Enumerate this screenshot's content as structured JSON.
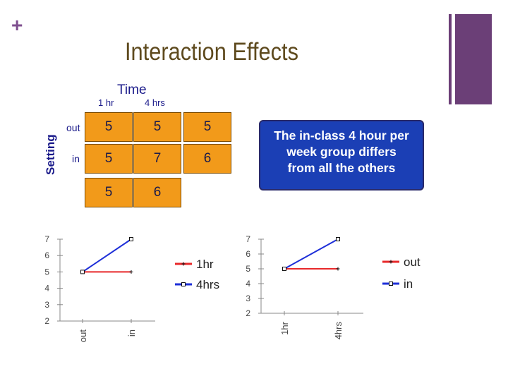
{
  "slide": {
    "marker": "+",
    "title": "Interaction Effects"
  },
  "table": {
    "column_title": "Time",
    "row_title": "Setting",
    "columns": [
      "1 hr",
      "4 hrs"
    ],
    "rows": [
      "out",
      "in"
    ],
    "cells": [
      [
        "5",
        "5"
      ],
      [
        "5",
        "7"
      ]
    ],
    "row_means": [
      "5",
      "6"
    ],
    "column_means": [
      "5",
      "6"
    ]
  },
  "callout": {
    "lines": [
      "The in-class 4 hour per",
      "week group differs",
      "from all the others"
    ]
  },
  "chart_data": [
    {
      "type": "line",
      "categories": [
        "out",
        "in"
      ],
      "ylim": [
        2,
        7
      ],
      "yticks": [
        "2",
        "3",
        "4",
        "5",
        "6",
        "7"
      ],
      "legend_placement": "right",
      "series": [
        {
          "name": "1hr",
          "values": [
            5,
            5
          ],
          "color": "#e8282a"
        },
        {
          "name": "4hrs",
          "values": [
            5,
            7
          ],
          "color": "#1e2fd8"
        }
      ]
    },
    {
      "type": "line",
      "categories": [
        "1hr",
        "4hrs"
      ],
      "ylim": [
        2,
        7
      ],
      "yticks": [
        "2",
        "3",
        "4",
        "5",
        "6",
        "7"
      ],
      "legend_placement": "right",
      "series": [
        {
          "name": "out",
          "values": [
            5,
            5
          ],
          "color": "#e8282a"
        },
        {
          "name": "in",
          "values": [
            5,
            7
          ],
          "color": "#1e2fd8"
        }
      ]
    }
  ]
}
